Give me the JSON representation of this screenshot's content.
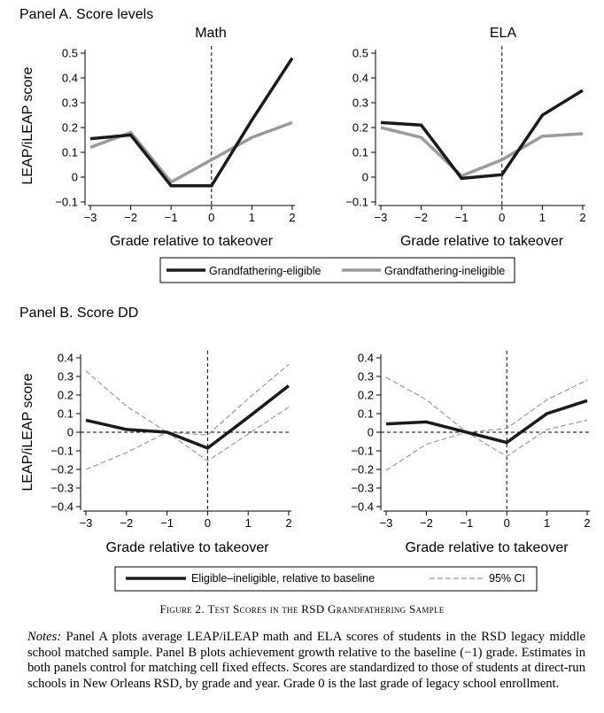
{
  "figure": {
    "caption_label": "Figure 2.",
    "caption_text": "Test Scores in the RSD Grandfathering Sample",
    "notes_label": "Notes:",
    "notes_text": "Panel A plots average LEAP/iLEAP math and ELA scores of students in the RSD legacy middle school matched sample. Panel B plots achievement growth relative to the baseline (−1) grade. Estimates in both panels control for matching cell fixed effects. Scores are standardized to those of students at direct-run schools in New Orleans RSD, by grade and year. Grade 0 is the last grade of legacy school enrollment."
  },
  "colors": {
    "eligible": "#1a1a1a",
    "ineligible": "#9a9a9a",
    "ci": "#9a9a9a",
    "axis": "#000000"
  },
  "chart_data": [
    {
      "panel": "Panel A. Score levels",
      "title": "Math",
      "type": "line",
      "xlabel": "Grade relative to takeover",
      "ylabel": "LEAP/iLEAP score",
      "x": [
        -3,
        -2,
        -1,
        0,
        1,
        2
      ],
      "xticks": [
        "−3",
        "−2",
        "−1",
        "0",
        "1",
        "2"
      ],
      "ylim": [
        -0.1,
        0.5
      ],
      "yticks": [
        "−0.1",
        "0",
        "0.1",
        "0.2",
        "0.3",
        "0.4",
        "0.5"
      ],
      "vline_x": 0,
      "series": [
        {
          "name": "Grandfathering-eligible",
          "values": [
            0.155,
            0.17,
            -0.035,
            -0.035,
            0.23,
            0.48
          ]
        },
        {
          "name": "Grandfathering-ineligible",
          "values": [
            0.12,
            0.18,
            -0.02,
            0.07,
            0.16,
            0.22
          ]
        }
      ]
    },
    {
      "panel": "",
      "title": "ELA",
      "type": "line",
      "xlabel": "Grade relative to takeover",
      "ylabel": "",
      "x": [
        -3,
        -2,
        -1,
        0,
        1,
        2
      ],
      "xticks": [
        "−3",
        "−2",
        "−1",
        "0",
        "1",
        "2"
      ],
      "ylim": [
        -0.1,
        0.5
      ],
      "yticks": [
        "−0.1",
        "0",
        "0.1",
        "0.2",
        "0.3",
        "0.4",
        "0.5"
      ],
      "vline_x": 0,
      "series": [
        {
          "name": "Grandfathering-eligible",
          "values": [
            0.22,
            0.21,
            -0.005,
            0.01,
            0.25,
            0.35
          ]
        },
        {
          "name": "Grandfathering-ineligible",
          "values": [
            0.2,
            0.16,
            0.005,
            0.07,
            0.165,
            0.175
          ]
        }
      ]
    },
    {
      "panel": "Panel B. Score DD",
      "title": "",
      "type": "line",
      "xlabel": "Grade relative to takeover",
      "ylabel": "LEAP/iLEAP score",
      "x": [
        -3,
        -2,
        -1,
        0,
        1,
        2
      ],
      "xticks": [
        "−3",
        "−2",
        "−1",
        "0",
        "1",
        "2"
      ],
      "ylim": [
        -0.4,
        0.4
      ],
      "yticks": [
        "−0.4",
        "−0.3",
        "−0.2",
        "−0.1",
        "0",
        "0.1",
        "0.2",
        "0.3",
        "0.4"
      ],
      "vline_x": 0,
      "hline_y": 0,
      "series": [
        {
          "name": "Eligible–ineligible, relative to baseline",
          "values": [
            0.065,
            0.015,
            0.0,
            -0.085,
            0.08,
            0.25
          ]
        },
        {
          "name": "95% CI",
          "values": [
            -0.2,
            -0.11,
            0.0,
            -0.155,
            -0.01,
            0.135
          ]
        },
        {
          "name": "95% CI upper",
          "values": [
            0.33,
            0.14,
            0.0,
            -0.015,
            0.18,
            0.365
          ]
        }
      ]
    },
    {
      "panel": "",
      "title": "",
      "type": "line",
      "xlabel": "Grade relative to takeover",
      "ylabel": "",
      "x": [
        -3,
        -2,
        -1,
        0,
        1,
        2
      ],
      "xticks": [
        "−3",
        "−2",
        "−1",
        "0",
        "1",
        "2"
      ],
      "ylim": [
        -0.4,
        0.4
      ],
      "yticks": [
        "−0.4",
        "−0.3",
        "−0.2",
        "−0.1",
        "0",
        "0.1",
        "0.2",
        "0.3",
        "0.4"
      ],
      "vline_x": 0,
      "hline_y": 0,
      "series": [
        {
          "name": "Eligible–ineligible, relative to baseline",
          "values": [
            0.045,
            0.055,
            0.0,
            -0.055,
            0.1,
            0.17
          ]
        },
        {
          "name": "95% CI",
          "values": [
            -0.205,
            -0.065,
            0.0,
            -0.13,
            0.015,
            0.065
          ]
        },
        {
          "name": "95% CI upper",
          "values": [
            0.295,
            0.175,
            0.0,
            0.02,
            0.175,
            0.28
          ]
        }
      ]
    }
  ],
  "legends": {
    "a": {
      "items": [
        "Grandfathering-eligible",
        "Grandfathering-ineligible"
      ]
    },
    "b": {
      "items": [
        "Eligible–ineligible, relative to baseline",
        "95% CI"
      ]
    }
  }
}
